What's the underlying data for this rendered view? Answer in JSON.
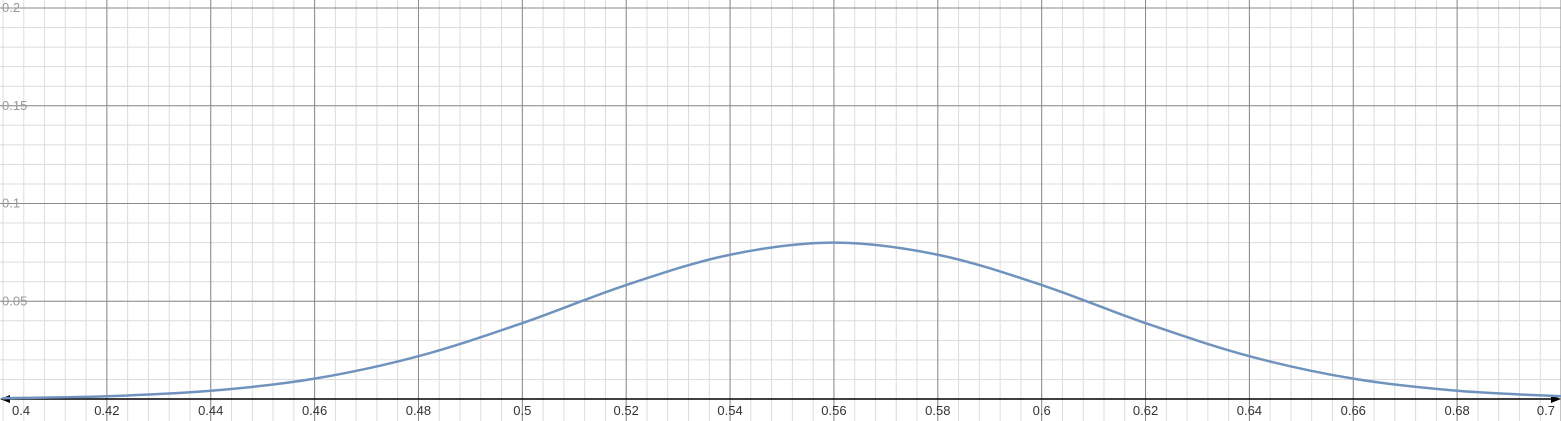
{
  "chart_data": {
    "type": "line",
    "title": "",
    "xlabel": "",
    "ylabel": "",
    "xlim": [
      0.4,
      0.7
    ],
    "ylim": [
      0,
      0.2
    ],
    "grid": true,
    "x_tick_labels": [
      "0.4",
      "0.42",
      "0.44",
      "0.46",
      "0.48",
      "0.5",
      "0.52",
      "0.54",
      "0.56",
      "0.58",
      "0.6",
      "0.62",
      "0.64",
      "0.66",
      "0.68",
      "0.7"
    ],
    "y_tick_labels": [
      "0.05",
      "0.1",
      "0.15",
      "0.2"
    ],
    "series": [
      {
        "color": "#6f93bd",
        "x": [
          0.4,
          0.42,
          0.44,
          0.46,
          0.48,
          0.5,
          0.52,
          0.54,
          0.56,
          0.58,
          0.6,
          0.62,
          0.64,
          0.66,
          0.68,
          0.7
        ],
        "y": [
          0.0004,
          0.0014,
          0.0042,
          0.0104,
          0.0219,
          0.0388,
          0.0583,
          0.0738,
          0.08,
          0.0738,
          0.0583,
          0.0388,
          0.0219,
          0.0104,
          0.0042,
          0.0014
        ]
      }
    ]
  },
  "colors": {
    "major_grid": "#8a8a8a",
    "minor_grid": "#dcdcdc",
    "axis": "#000000"
  }
}
